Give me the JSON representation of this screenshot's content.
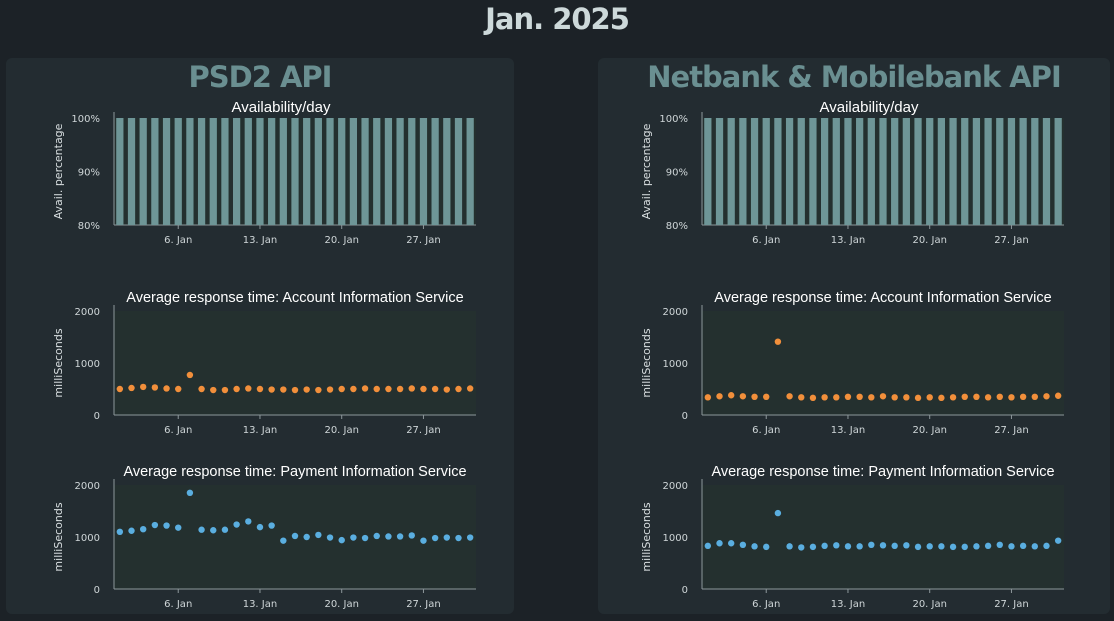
{
  "page": {
    "title": "Jan. 2025"
  },
  "panels": [
    {
      "title": "PSD2 API"
    },
    {
      "title": "Netbank & Mobilebank API"
    }
  ],
  "colors": {
    "background": "#1c2227",
    "panel": "#232c31",
    "panel_title": "#6a8f91",
    "availability_bar": "#6e9697",
    "ais_points": "#f28f3b",
    "pis_points": "#5aaee0"
  },
  "chart_data": [
    {
      "type": "bar",
      "panel": 0,
      "title": "Availability/day",
      "ylabel": "Avail. percentage",
      "ylim": [
        80,
        100
      ],
      "yticks": [
        "80%",
        "90%",
        "100%"
      ],
      "ytick_values": [
        80,
        90,
        100
      ],
      "x": [
        "2025-01-01",
        "2025-01-02",
        "2025-01-03",
        "2025-01-04",
        "2025-01-05",
        "2025-01-06",
        "2025-01-07",
        "2025-01-08",
        "2025-01-09",
        "2025-01-10",
        "2025-01-11",
        "2025-01-12",
        "2025-01-13",
        "2025-01-14",
        "2025-01-15",
        "2025-01-16",
        "2025-01-17",
        "2025-01-18",
        "2025-01-19",
        "2025-01-20",
        "2025-01-21",
        "2025-01-22",
        "2025-01-23",
        "2025-01-24",
        "2025-01-25",
        "2025-01-26",
        "2025-01-27",
        "2025-01-28",
        "2025-01-29",
        "2025-01-30",
        "2025-01-31"
      ],
      "xticks": [
        "6. Jan",
        "13. Jan",
        "20. Jan",
        "27. Jan"
      ],
      "values": [
        100,
        100,
        100,
        100,
        100,
        100,
        100,
        100,
        100,
        100,
        100,
        100,
        100,
        100,
        100,
        100,
        100,
        100,
        100,
        100,
        100,
        100,
        100,
        100,
        100,
        100,
        100,
        100,
        100,
        100,
        100
      ]
    },
    {
      "type": "scatter",
      "panel": 0,
      "title": "Average response time: Account Information Service",
      "ylabel": "milliSeconds",
      "ylim": [
        0,
        2000
      ],
      "yticks": [
        "0",
        "1000",
        "2000"
      ],
      "ytick_values": [
        0,
        1000,
        2000
      ],
      "xticks": [
        "6. Jan",
        "13. Jan",
        "20. Jan",
        "27. Jan"
      ],
      "x": [
        "2025-01-01",
        "2025-01-02",
        "2025-01-03",
        "2025-01-04",
        "2025-01-05",
        "2025-01-06",
        "2025-01-07",
        "2025-01-08",
        "2025-01-09",
        "2025-01-10",
        "2025-01-11",
        "2025-01-12",
        "2025-01-13",
        "2025-01-14",
        "2025-01-15",
        "2025-01-16",
        "2025-01-17",
        "2025-01-18",
        "2025-01-19",
        "2025-01-20",
        "2025-01-21",
        "2025-01-22",
        "2025-01-23",
        "2025-01-24",
        "2025-01-25",
        "2025-01-26",
        "2025-01-27",
        "2025-01-28",
        "2025-01-29",
        "2025-01-30",
        "2025-01-31"
      ],
      "values": [
        500,
        520,
        540,
        530,
        510,
        500,
        770,
        500,
        480,
        480,
        500,
        510,
        500,
        490,
        490,
        480,
        490,
        480,
        490,
        500,
        500,
        510,
        500,
        500,
        500,
        510,
        500,
        500,
        490,
        500,
        510
      ]
    },
    {
      "type": "scatter",
      "panel": 0,
      "title": "Average response time: Payment Information Service",
      "ylabel": "milliSeconds",
      "ylim": [
        0,
        2000
      ],
      "yticks": [
        "0",
        "1000",
        "2000"
      ],
      "ytick_values": [
        0,
        1000,
        2000
      ],
      "xticks": [
        "6. Jan",
        "13. Jan",
        "20. Jan",
        "27. Jan"
      ],
      "x": [
        "2025-01-01",
        "2025-01-02",
        "2025-01-03",
        "2025-01-04",
        "2025-01-05",
        "2025-01-06",
        "2025-01-07",
        "2025-01-08",
        "2025-01-09",
        "2025-01-10",
        "2025-01-11",
        "2025-01-12",
        "2025-01-13",
        "2025-01-14",
        "2025-01-15",
        "2025-01-16",
        "2025-01-17",
        "2025-01-18",
        "2025-01-19",
        "2025-01-20",
        "2025-01-21",
        "2025-01-22",
        "2025-01-23",
        "2025-01-24",
        "2025-01-25",
        "2025-01-26",
        "2025-01-27",
        "2025-01-28",
        "2025-01-29",
        "2025-01-30",
        "2025-01-31"
      ],
      "values": [
        1100,
        1120,
        1150,
        1230,
        1220,
        1180,
        1850,
        1140,
        1130,
        1140,
        1240,
        1300,
        1190,
        1220,
        930,
        1020,
        1000,
        1040,
        990,
        940,
        990,
        980,
        1020,
        1010,
        1010,
        1030,
        930,
        980,
        990,
        980,
        990
      ]
    },
    {
      "type": "bar",
      "panel": 1,
      "title": "Availability/day",
      "ylabel": "Avail. percentage",
      "ylim": [
        80,
        100
      ],
      "yticks": [
        "80%",
        "90%",
        "100%"
      ],
      "ytick_values": [
        80,
        90,
        100
      ],
      "x": [
        "2025-01-01",
        "2025-01-02",
        "2025-01-03",
        "2025-01-04",
        "2025-01-05",
        "2025-01-06",
        "2025-01-07",
        "2025-01-08",
        "2025-01-09",
        "2025-01-10",
        "2025-01-11",
        "2025-01-12",
        "2025-01-13",
        "2025-01-14",
        "2025-01-15",
        "2025-01-16",
        "2025-01-17",
        "2025-01-18",
        "2025-01-19",
        "2025-01-20",
        "2025-01-21",
        "2025-01-22",
        "2025-01-23",
        "2025-01-24",
        "2025-01-25",
        "2025-01-26",
        "2025-01-27",
        "2025-01-28",
        "2025-01-29",
        "2025-01-30",
        "2025-01-31"
      ],
      "xticks": [
        "6. Jan",
        "13. Jan",
        "20. Jan",
        "27. Jan"
      ],
      "values": [
        100,
        100,
        100,
        100,
        100,
        100,
        100,
        100,
        100,
        100,
        100,
        100,
        100,
        100,
        100,
        100,
        100,
        100,
        100,
        100,
        100,
        100,
        100,
        100,
        100,
        100,
        100,
        100,
        100,
        100,
        100
      ]
    },
    {
      "type": "scatter",
      "panel": 1,
      "title": "Average response time: Account Information Service",
      "ylabel": "milliSeconds",
      "ylim": [
        0,
        2000
      ],
      "yticks": [
        "0",
        "1000",
        "2000"
      ],
      "ytick_values": [
        0,
        1000,
        2000
      ],
      "xticks": [
        "6. Jan",
        "13. Jan",
        "20. Jan",
        "27. Jan"
      ],
      "x": [
        "2025-01-01",
        "2025-01-02",
        "2025-01-03",
        "2025-01-04",
        "2025-01-05",
        "2025-01-06",
        "2025-01-07",
        "2025-01-08",
        "2025-01-09",
        "2025-01-10",
        "2025-01-11",
        "2025-01-12",
        "2025-01-13",
        "2025-01-14",
        "2025-01-15",
        "2025-01-16",
        "2025-01-17",
        "2025-01-18",
        "2025-01-19",
        "2025-01-20",
        "2025-01-21",
        "2025-01-22",
        "2025-01-23",
        "2025-01-24",
        "2025-01-25",
        "2025-01-26",
        "2025-01-27",
        "2025-01-28",
        "2025-01-29",
        "2025-01-30",
        "2025-01-31"
      ],
      "values": [
        340,
        360,
        380,
        360,
        350,
        350,
        1410,
        360,
        340,
        330,
        340,
        340,
        350,
        350,
        340,
        360,
        340,
        340,
        330,
        340,
        330,
        340,
        350,
        350,
        340,
        350,
        340,
        350,
        350,
        360,
        370
      ]
    },
    {
      "type": "scatter",
      "panel": 1,
      "title": "Average response time: Payment Information Service",
      "ylabel": "milliSeconds",
      "ylim": [
        0,
        2000
      ],
      "yticks": [
        "0",
        "1000",
        "2000"
      ],
      "ytick_values": [
        0,
        1000,
        2000
      ],
      "xticks": [
        "6. Jan",
        "13. Jan",
        "20. Jan",
        "27. Jan"
      ],
      "x": [
        "2025-01-01",
        "2025-01-02",
        "2025-01-03",
        "2025-01-04",
        "2025-01-05",
        "2025-01-06",
        "2025-01-07",
        "2025-01-08",
        "2025-01-09",
        "2025-01-10",
        "2025-01-11",
        "2025-01-12",
        "2025-01-13",
        "2025-01-14",
        "2025-01-15",
        "2025-01-16",
        "2025-01-17",
        "2025-01-18",
        "2025-01-19",
        "2025-01-20",
        "2025-01-21",
        "2025-01-22",
        "2025-01-23",
        "2025-01-24",
        "2025-01-25",
        "2025-01-26",
        "2025-01-27",
        "2025-01-28",
        "2025-01-29",
        "2025-01-30",
        "2025-01-31"
      ],
      "values": [
        830,
        880,
        880,
        850,
        820,
        810,
        1460,
        820,
        800,
        810,
        830,
        840,
        820,
        820,
        850,
        840,
        830,
        840,
        810,
        820,
        820,
        810,
        810,
        820,
        830,
        850,
        820,
        830,
        820,
        830,
        930
      ]
    }
  ]
}
